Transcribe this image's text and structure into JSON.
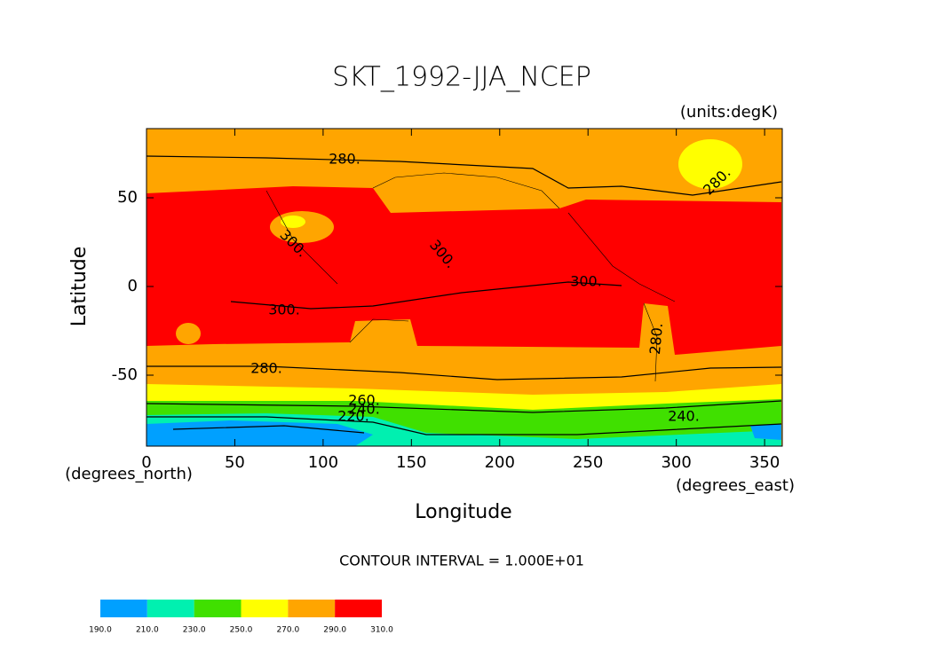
{
  "chart_data": {
    "type": "contour",
    "title": "SKT_1992-JJA_NCEP",
    "units_note": "(units:degK)",
    "x_label": "Longitude",
    "x_unit": "(degrees_east)",
    "y_label": "Latitude",
    "y_unit": "(degrees_north)",
    "contour_interval": "CONTOUR INTERVAL = 1.000E+01",
    "xlim": [
      0,
      360
    ],
    "ylim": [
      -90,
      90
    ],
    "xticks": [
      0,
      50,
      100,
      150,
      200,
      250,
      300,
      350
    ],
    "yticks": [
      -50,
      0,
      50
    ],
    "contour_labels": [
      "280.",
      "280.",
      "300.",
      "300.",
      "300.",
      "300.",
      "280.",
      "280.",
      "260.",
      "240.",
      "220.",
      "240."
    ],
    "colorbar": {
      "levels": [
        {
          "value": 190,
          "label": "190.0"
        },
        {
          "value": 210,
          "label": "210.0"
        },
        {
          "value": 230,
          "label": "230.0"
        },
        {
          "value": 250,
          "label": "250.0"
        },
        {
          "value": 270,
          "label": "270.0"
        },
        {
          "value": 290,
          "label": "290.0"
        },
        {
          "value": 310,
          "label": "310.0"
        }
      ],
      "colors": [
        "#00a0ff",
        "#00f0b0",
        "#40e000",
        "#ffff00",
        "#ffa500",
        "#ff0000"
      ]
    }
  }
}
